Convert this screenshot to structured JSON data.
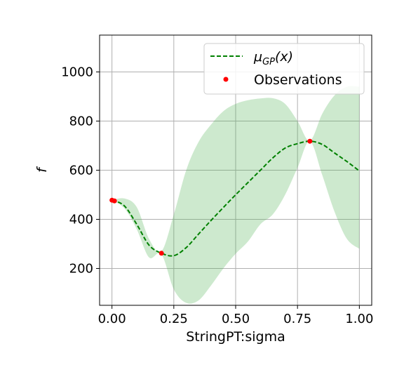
{
  "chart_data": {
    "type": "line",
    "title": "",
    "xlabel": "StringPT:sigma",
    "ylabel": "f",
    "xlim": [
      -0.05,
      1.05
    ],
    "ylim": [
      50,
      1150
    ],
    "xticks": [
      0.0,
      0.25,
      0.5,
      0.75,
      1.0
    ],
    "xtick_labels": [
      "0.00",
      "0.25",
      "0.50",
      "0.75",
      "1.00"
    ],
    "yticks": [
      200,
      400,
      600,
      800,
      1000
    ],
    "ytick_labels": [
      "200",
      "400",
      "600",
      "800",
      "1000"
    ],
    "grid": true,
    "legend_position": "top-right",
    "colors": {
      "mean": "#008000",
      "band": "#4caf50",
      "observations": "#ff0000",
      "grid": "#b0b0b0"
    },
    "legend": [
      {
        "label": "μ_GP(x)",
        "style": "dashed-line"
      },
      {
        "label": "Observations",
        "style": "marker"
      }
    ],
    "series": [
      {
        "name": "μ_GP(x)",
        "x": [
          0.0,
          0.05,
          0.1,
          0.15,
          0.2,
          0.25,
          0.3,
          0.35,
          0.4,
          0.45,
          0.5,
          0.55,
          0.6,
          0.65,
          0.7,
          0.75,
          0.8,
          0.85,
          0.9,
          0.95,
          1.0
        ],
        "y": [
          478,
          455,
          380,
          295,
          262,
          252,
          285,
          340,
          395,
          448,
          500,
          550,
          600,
          650,
          690,
          708,
          718,
          705,
          670,
          635,
          597
        ]
      },
      {
        "name": "Observations",
        "x": [
          0.0,
          0.01,
          0.2,
          0.8
        ],
        "y": [
          478,
          475,
          262,
          718
        ]
      }
    ],
    "band": {
      "x": [
        0.0,
        0.05,
        0.1,
        0.15,
        0.2,
        0.25,
        0.3,
        0.35,
        0.4,
        0.45,
        0.5,
        0.55,
        0.6,
        0.65,
        0.7,
        0.75,
        0.8,
        0.85,
        0.9,
        0.95,
        1.0
      ],
      "upper": [
        478,
        485,
        450,
        320,
        270,
        420,
        600,
        715,
        785,
        840,
        870,
        885,
        892,
        893,
        870,
        800,
        720,
        830,
        905,
        940,
        940
      ],
      "lower": [
        478,
        445,
        360,
        245,
        258,
        115,
        60,
        70,
        130,
        200,
        260,
        310,
        380,
        420,
        500,
        610,
        718,
        580,
        430,
        320,
        280
      ]
    }
  }
}
